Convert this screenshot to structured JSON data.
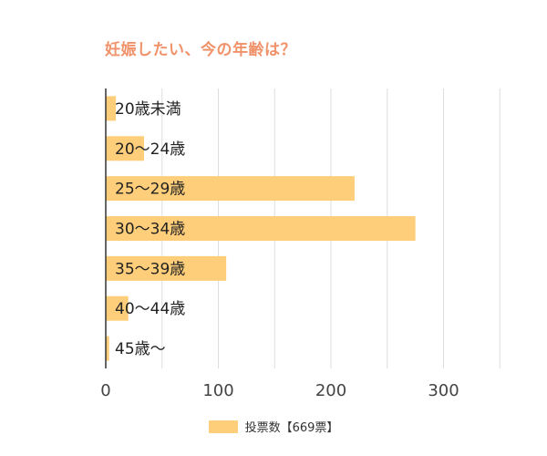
{
  "chart_data": {
    "type": "bar",
    "orientation": "horizontal",
    "title": "妊娠したい、今の年齢は？",
    "categories": [
      "20歳未満",
      "20～24歳",
      "25～29歳",
      "30～34歳",
      "35～39歳",
      "40～44歳",
      "45歳～"
    ],
    "series": [
      {
        "name": "投票数【669票】",
        "values": [
          9,
          34,
          221,
          275,
          107,
          20,
          3
        ]
      }
    ],
    "xlim": [
      0,
      350
    ],
    "xticks": [
      "0",
      "100",
      "200",
      "300"
    ],
    "grid": true,
    "legend_position": "bottom",
    "colors": {
      "bar": "#ffce7a",
      "title": "#f0926a",
      "grid": "#dddddd",
      "axis": "#333333"
    }
  }
}
